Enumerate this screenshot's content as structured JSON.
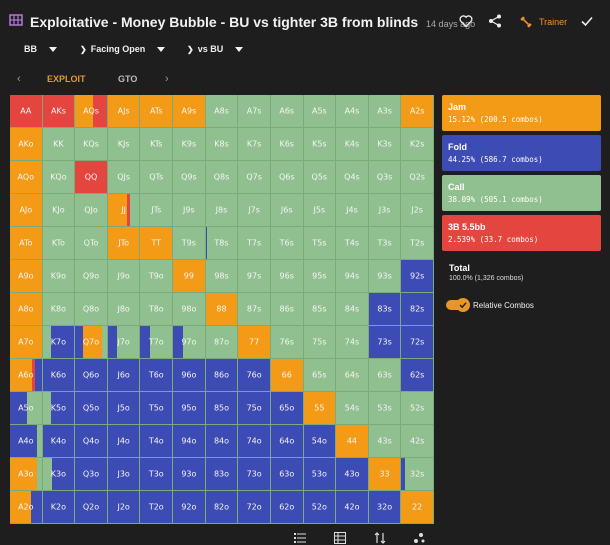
{
  "header": {
    "title": "Exploitative - Money Bubble - BU vs tighter 3B from blinds",
    "time": "14 days ago",
    "trainer_label": "Trainer"
  },
  "filters": {
    "position": "BB",
    "action": "Facing Open",
    "vs": "vs BU"
  },
  "tabs": [
    {
      "label": "EXPLOIT",
      "active": true
    },
    {
      "label": "GTO",
      "active": false
    }
  ],
  "colors": {
    "jam": "#f39a17",
    "fold": "#3d4bb4",
    "call": "#90c08f",
    "three_bet": "#e5453f",
    "accent": "#e8952f"
  },
  "legend": [
    {
      "name": "Jam",
      "detail": "15.12% (200.5 combos)",
      "color": "#f39a17"
    },
    {
      "name": "Fold",
      "detail": "44.25% (586.7 combos)",
      "color": "#3d4bb4"
    },
    {
      "name": "Call",
      "detail": "38.09% (505.1 combos)",
      "color": "#90c08f"
    },
    {
      "name": "3B 5.5bb",
      "detail": "2.539% (33.7 combos)",
      "color": "#e5453f"
    }
  ],
  "total": {
    "label": "Total",
    "detail": "100.0% (1,326 combos)"
  },
  "relative_combos": {
    "label": "Relative Combos",
    "enabled": true
  },
  "ranks": [
    "A",
    "K",
    "Q",
    "J",
    "T",
    "9",
    "8",
    "7",
    "6",
    "5",
    "4",
    "3",
    "2"
  ],
  "hands": [
    [
      "AA",
      "AKs",
      "AQs",
      "AJs",
      "ATs",
      "A9s",
      "A8s",
      "A7s",
      "A6s",
      "A5s",
      "A4s",
      "A3s",
      "A2s"
    ],
    [
      "AKo",
      "KK",
      "KQs",
      "KJs",
      "KTs",
      "K9s",
      "K8s",
      "K7s",
      "K6s",
      "K5s",
      "K4s",
      "K3s",
      "K2s"
    ],
    [
      "AQo",
      "KQo",
      "QQ",
      "QJs",
      "QTs",
      "Q9s",
      "Q8s",
      "Q7s",
      "Q6s",
      "Q5s",
      "Q4s",
      "Q3s",
      "Q2s"
    ],
    [
      "AJo",
      "KJo",
      "QJo",
      "JJ",
      "JTs",
      "J9s",
      "J8s",
      "J7s",
      "J6s",
      "J5s",
      "J4s",
      "J3s",
      "J2s"
    ],
    [
      "ATo",
      "KTo",
      "QTo",
      "JTo",
      "TT",
      "T9s",
      "T8s",
      "T7s",
      "T6s",
      "T5s",
      "T4s",
      "T3s",
      "T2s"
    ],
    [
      "A9o",
      "K9o",
      "Q9o",
      "J9o",
      "T9o",
      "99",
      "98s",
      "97s",
      "96s",
      "95s",
      "94s",
      "93s",
      "92s"
    ],
    [
      "A8o",
      "K8o",
      "Q8o",
      "J8o",
      "T8o",
      "98o",
      "88",
      "87s",
      "86s",
      "85s",
      "84s",
      "83s",
      "82s"
    ],
    [
      "A7o",
      "K7o",
      "Q7o",
      "J7o",
      "T7o",
      "97o",
      "87o",
      "77",
      "76s",
      "75s",
      "74s",
      "73s",
      "72s"
    ],
    [
      "A6o",
      "K6o",
      "Q6o",
      "J6o",
      "T6o",
      "96o",
      "86o",
      "76o",
      "66",
      "65s",
      "64s",
      "63s",
      "62s"
    ],
    [
      "A5o",
      "K5o",
      "Q5o",
      "J5o",
      "T5o",
      "95o",
      "85o",
      "75o",
      "65o",
      "55",
      "54s",
      "53s",
      "52s"
    ],
    [
      "A4o",
      "K4o",
      "Q4o",
      "J4o",
      "T4o",
      "94o",
      "84o",
      "74o",
      "64o",
      "54o",
      "44",
      "43s",
      "42s"
    ],
    [
      "A3o",
      "K3o",
      "Q3o",
      "J3o",
      "T3o",
      "93o",
      "83o",
      "73o",
      "63o",
      "53o",
      "43o",
      "33",
      "32s"
    ],
    [
      "A2o",
      "K2o",
      "Q2o",
      "J2o",
      "T2o",
      "92o",
      "82o",
      "72o",
      "62o",
      "52o",
      "42o",
      "32o",
      "22"
    ]
  ],
  "overrides": {
    "AA": [
      [
        "three_bet",
        1
      ]
    ],
    "AKs": [
      [
        "three_bet",
        1
      ]
    ],
    "AQs": [
      [
        "jam",
        0.55
      ],
      [
        "three_bet",
        0.45
      ]
    ],
    "AJs": [
      [
        "jam",
        1
      ]
    ],
    "ATs": [
      [
        "jam",
        1
      ]
    ],
    "A9s": [
      [
        "jam",
        1
      ]
    ],
    "A2s": [
      [
        "jam",
        1
      ]
    ],
    "AKo": [
      [
        "jam",
        1
      ]
    ],
    "AQo": [
      [
        "jam",
        1
      ]
    ],
    "QQ": [
      [
        "three_bet",
        1
      ]
    ],
    "AJo": [
      [
        "jam",
        1
      ]
    ],
    "JJ": [
      [
        "jam",
        0.6
      ],
      [
        "three_bet",
        0.1
      ],
      [
        "call",
        0.3
      ]
    ],
    "ATo": [
      [
        "jam",
        1
      ]
    ],
    "JTo": [
      [
        "jam",
        1
      ]
    ],
    "TT": [
      [
        "jam",
        1
      ]
    ],
    "T8s": [
      [
        "fold",
        0.05
      ],
      [
        "call",
        0.95
      ]
    ],
    "A9o": [
      [
        "jam",
        1
      ]
    ],
    "99": [
      [
        "jam",
        1
      ]
    ],
    "92s": [
      [
        "fold",
        1
      ]
    ],
    "A8o": [
      [
        "jam",
        1
      ]
    ],
    "88": [
      [
        "jam",
        1
      ]
    ],
    "83s": [
      [
        "fold",
        1
      ]
    ],
    "82s": [
      [
        "fold",
        1
      ]
    ],
    "A7o": [
      [
        "jam",
        1
      ]
    ],
    "K7o": [
      [
        "call",
        0.25
      ],
      [
        "fold",
        0.75
      ]
    ],
    "Q7o": [
      [
        "fold",
        0.25
      ],
      [
        "jam",
        0.6
      ],
      [
        "call",
        0.15
      ]
    ],
    "J7o": [
      [
        "fold",
        0.3
      ],
      [
        "call",
        0.7
      ]
    ],
    "T7o": [
      [
        "fold",
        0.3
      ],
      [
        "call",
        0.7
      ]
    ],
    "97o": [
      [
        "fold",
        0.3
      ],
      [
        "call",
        0.7
      ]
    ],
    "77": [
      [
        "jam",
        1
      ]
    ],
    "73s": [
      [
        "fold",
        1
      ]
    ],
    "72s": [
      [
        "fold",
        1
      ]
    ],
    "A6o": [
      [
        "jam",
        0.7
      ],
      [
        "three_bet",
        0.08
      ],
      [
        "fold",
        0.22
      ]
    ],
    "K6o": [
      [
        "fold",
        1
      ]
    ],
    "Q6o": [
      [
        "fold",
        1
      ]
    ],
    "J6o": [
      [
        "fold",
        1
      ]
    ],
    "T6o": [
      [
        "fold",
        1
      ]
    ],
    "96o": [
      [
        "fold",
        1
      ]
    ],
    "86o": [
      [
        "fold",
        1
      ]
    ],
    "76o": [
      [
        "fold",
        1
      ]
    ],
    "66": [
      [
        "jam",
        1
      ]
    ],
    "62s": [
      [
        "fold",
        1
      ]
    ],
    "A5o": [
      [
        "fold",
        0.55
      ],
      [
        "call",
        0.45
      ]
    ],
    "K5o": [
      [
        "call",
        0.25
      ],
      [
        "fold",
        0.75
      ]
    ],
    "Q5o": [
      [
        "fold",
        1
      ]
    ],
    "J5o": [
      [
        "fold",
        1
      ]
    ],
    "T5o": [
      [
        "fold",
        1
      ]
    ],
    "95o": [
      [
        "fold",
        1
      ]
    ],
    "85o": [
      [
        "fold",
        1
      ]
    ],
    "75o": [
      [
        "fold",
        1
      ]
    ],
    "65o": [
      [
        "fold",
        1
      ]
    ],
    "55": [
      [
        "jam",
        1
      ]
    ],
    "A4o": [
      [
        "fold",
        0.85
      ],
      [
        "call",
        0.15
      ]
    ],
    "K4o": [
      [
        "fold",
        1
      ]
    ],
    "Q4o": [
      [
        "fold",
        1
      ]
    ],
    "J4o": [
      [
        "fold",
        1
      ]
    ],
    "T4o": [
      [
        "fold",
        1
      ]
    ],
    "94o": [
      [
        "fold",
        1
      ]
    ],
    "84o": [
      [
        "fold",
        1
      ]
    ],
    "74o": [
      [
        "fold",
        1
      ]
    ],
    "64o": [
      [
        "fold",
        1
      ]
    ],
    "54o": [
      [
        "fold",
        1
      ]
    ],
    "44": [
      [
        "jam",
        1
      ]
    ],
    "A3o": [
      [
        "jam",
        0.85
      ],
      [
        "call",
        0.15
      ]
    ],
    "K3o": [
      [
        "call",
        0.3
      ],
      [
        "fold",
        0.7
      ]
    ],
    "Q3o": [
      [
        "fold",
        1
      ]
    ],
    "J3o": [
      [
        "fold",
        1
      ]
    ],
    "T3o": [
      [
        "fold",
        1
      ]
    ],
    "93o": [
      [
        "fold",
        1
      ]
    ],
    "83o": [
      [
        "fold",
        1
      ]
    ],
    "73o": [
      [
        "fold",
        1
      ]
    ],
    "63o": [
      [
        "fold",
        1
      ]
    ],
    "53o": [
      [
        "fold",
        1
      ]
    ],
    "43o": [
      [
        "fold",
        1
      ]
    ],
    "33": [
      [
        "jam",
        1
      ]
    ],
    "32s": [
      [
        "fold",
        0.1
      ],
      [
        "call",
        0.9
      ]
    ],
    "A2o": [
      [
        "jam",
        0.65
      ],
      [
        "fold",
        0.35
      ]
    ],
    "K2o": [
      [
        "fold",
        1
      ]
    ],
    "Q2o": [
      [
        "fold",
        1
      ]
    ],
    "J2o": [
      [
        "fold",
        1
      ]
    ],
    "T2o": [
      [
        "fold",
        1
      ]
    ],
    "92o": [
      [
        "fold",
        1
      ]
    ],
    "82o": [
      [
        "fold",
        1
      ]
    ],
    "72o": [
      [
        "fold",
        1
      ]
    ],
    "62o": [
      [
        "fold",
        1
      ]
    ],
    "52o": [
      [
        "fold",
        1
      ]
    ],
    "42o": [
      [
        "fold",
        1
      ]
    ],
    "32o": [
      [
        "fold",
        1
      ]
    ],
    "22": [
      [
        "jam",
        1
      ]
    ]
  },
  "bottom_icons": [
    "list-icon",
    "table-icon",
    "sort-icon",
    "scatter-icon"
  ]
}
